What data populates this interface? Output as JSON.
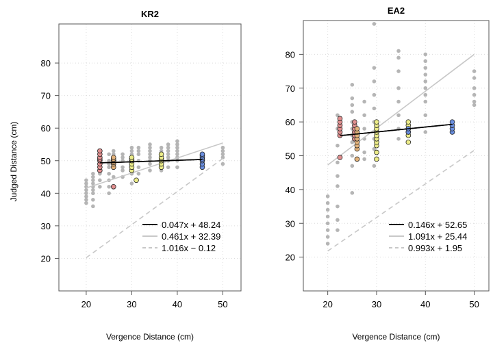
{
  "figure": {
    "ylabel": "Judged Distance (cm)"
  },
  "chart_data": [
    {
      "type": "scatter",
      "title": "KR2",
      "xlabel": "Vergence Distance (cm)",
      "ylabel": "Judged Distance (cm)",
      "xlim": [
        14,
        54
      ],
      "ylim": [
        10,
        92
      ],
      "xticks": [
        20,
        30,
        40,
        50
      ],
      "yticks": [
        20,
        30,
        40,
        50,
        60,
        70,
        80
      ],
      "grid": true,
      "colors": {
        "red": "#e08f8f",
        "orange": "#e3b27a",
        "yellow": "#ecec88",
        "blue": "#6a8fe0",
        "gray": "#b5b5b5"
      },
      "background_points": [
        {
          "x": 20,
          "y": [
            37,
            38,
            39,
            40,
            41,
            42,
            43,
            44
          ]
        },
        {
          "x": 21.5,
          "y": [
            36,
            38,
            40,
            41,
            42,
            43,
            44,
            45,
            46
          ]
        },
        {
          "x": 23,
          "y": [
            42,
            44,
            46,
            47,
            48,
            49,
            50,
            51,
            52
          ]
        },
        {
          "x": 25,
          "y": [
            40,
            42,
            44,
            46,
            48,
            49,
            50,
            52
          ]
        },
        {
          "x": 26,
          "y": [
            42,
            45,
            48,
            50,
            51,
            52,
            53
          ]
        },
        {
          "x": 28,
          "y": [
            45,
            47,
            48,
            50,
            51,
            52
          ]
        },
        {
          "x": 30,
          "y": [
            43,
            46,
            48,
            50,
            51,
            52,
            53,
            54
          ]
        },
        {
          "x": 31.5,
          "y": [
            46,
            48,
            50,
            52,
            53,
            54
          ]
        },
        {
          "x": 34,
          "y": [
            47,
            49,
            50,
            51,
            52,
            53,
            54,
            55
          ]
        },
        {
          "x": 36.5,
          "y": [
            47,
            49,
            50,
            51,
            52,
            53,
            54
          ]
        },
        {
          "x": 38,
          "y": [
            48,
            50,
            51,
            52,
            53,
            54,
            55
          ]
        },
        {
          "x": 40,
          "y": [
            48,
            50,
            51,
            52,
            53,
            54,
            55,
            56
          ]
        },
        {
          "x": 50,
          "y": [
            49,
            51,
            52,
            53,
            54
          ]
        }
      ],
      "highlight_points": [
        {
          "x": 23,
          "color": "red",
          "y": [
            47,
            48,
            49,
            50,
            50.5,
            51,
            52,
            53
          ]
        },
        {
          "x": 26,
          "color": "red",
          "y": [
            42
          ]
        },
        {
          "x": 26,
          "color": "orange",
          "y": [
            48,
            49,
            49.5,
            50,
            50.5,
            51
          ]
        },
        {
          "x": 30,
          "color": "yellow",
          "y": [
            47,
            48,
            49,
            50,
            50.5,
            51
          ]
        },
        {
          "x": 31,
          "color": "yellow",
          "y": [
            44
          ]
        },
        {
          "x": 36.5,
          "color": "yellow",
          "y": [
            48,
            49,
            50,
            50.5,
            51,
            52
          ]
        },
        {
          "x": 45.5,
          "color": "blue",
          "y": [
            48,
            49,
            50,
            50.5,
            51,
            51.5,
            52
          ]
        }
      ],
      "series": [
        {
          "name": "0.047x + 48.24",
          "style": "solid",
          "color": "#000000",
          "slope": 0.047,
          "intercept": 48.24,
          "x_range": [
            23,
            45.5
          ]
        },
        {
          "name": "0.461x + 32.39",
          "style": "solid",
          "color": "#c8c8c8",
          "slope": 0.461,
          "intercept": 32.39,
          "x_range": [
            20,
            50
          ]
        },
        {
          "name": "1.016x − 0.12",
          "style": "dashed",
          "color": "#c8c8c8",
          "slope": 1.016,
          "intercept": -0.12,
          "x_range": [
            20,
            50
          ]
        }
      ],
      "legend": "bottom-right"
    },
    {
      "type": "scatter",
      "title": "EA2",
      "xlabel": "Vergence Distance (cm)",
      "ylabel": "",
      "xlim": [
        15,
        53
      ],
      "ylim": [
        10,
        90
      ],
      "xticks": [
        20,
        30,
        40,
        50
      ],
      "yticks": [
        20,
        30,
        40,
        50,
        60,
        70,
        80
      ],
      "grid": true,
      "colors": {
        "red": "#e08f8f",
        "orange": "#e3b27a",
        "yellow": "#ecec88",
        "blue": "#6a8fe0",
        "gray": "#b5b5b5"
      },
      "background_points": [
        {
          "x": 20,
          "y": [
            24,
            26,
            28,
            30,
            32,
            34,
            36,
            38
          ]
        },
        {
          "x": 22,
          "y": [
            28,
            31,
            35,
            41,
            44,
            48,
            53,
            58,
            62
          ]
        },
        {
          "x": 25,
          "y": [
            39,
            47,
            50,
            54,
            56,
            58,
            60,
            63,
            65,
            67,
            71
          ]
        },
        {
          "x": 27.5,
          "y": [
            49,
            51,
            55,
            58,
            62,
            66
          ]
        },
        {
          "x": 29.5,
          "y": [
            47,
            52,
            55,
            60,
            64,
            68,
            72,
            76,
            89
          ]
        },
        {
          "x": 34.5,
          "y": [
            55,
            58,
            62,
            66,
            70,
            75,
            79,
            81
          ]
        },
        {
          "x": 40,
          "y": [
            57,
            62,
            66,
            68,
            70,
            72,
            74,
            76,
            78,
            80
          ]
        },
        {
          "x": 50,
          "y": [
            65,
            66,
            68,
            70,
            73,
            75
          ]
        }
      ],
      "highlight_points": [
        {
          "x": 22.5,
          "color": "red",
          "y": [
            49.5,
            56,
            57,
            58,
            59,
            60,
            61
          ]
        },
        {
          "x": 25.5,
          "color": "red",
          "y": [
            55,
            56,
            57,
            58,
            59,
            60
          ]
        },
        {
          "x": 26,
          "color": "orange",
          "y": [
            49,
            52,
            53,
            54,
            55,
            56,
            57,
            58
          ]
        },
        {
          "x": 30,
          "color": "yellow",
          "y": [
            49,
            51,
            53,
            54,
            55,
            56,
            57,
            58,
            59,
            60
          ]
        },
        {
          "x": 36.5,
          "color": "yellow",
          "y": [
            54,
            56,
            57,
            58,
            59,
            60
          ]
        },
        {
          "x": 36.5,
          "color": "blue",
          "y": [
            57,
            58
          ]
        },
        {
          "x": 45.5,
          "color": "blue",
          "y": [
            57,
            58,
            59,
            60
          ]
        }
      ],
      "series": [
        {
          "name": "0.146x + 52.65",
          "style": "solid",
          "color": "#000000",
          "slope": 0.146,
          "intercept": 52.65,
          "x_range": [
            22.5,
            45.5
          ]
        },
        {
          "name": "1.091x + 25.44",
          "style": "solid",
          "color": "#c8c8c8",
          "slope": 1.091,
          "intercept": 25.44,
          "x_range": [
            20,
            50
          ]
        },
        {
          "name": "0.993x + 1.95",
          "style": "dashed",
          "color": "#c8c8c8",
          "slope": 0.993,
          "intercept": 1.95,
          "x_range": [
            20,
            50
          ]
        }
      ],
      "legend": "bottom-right"
    }
  ]
}
